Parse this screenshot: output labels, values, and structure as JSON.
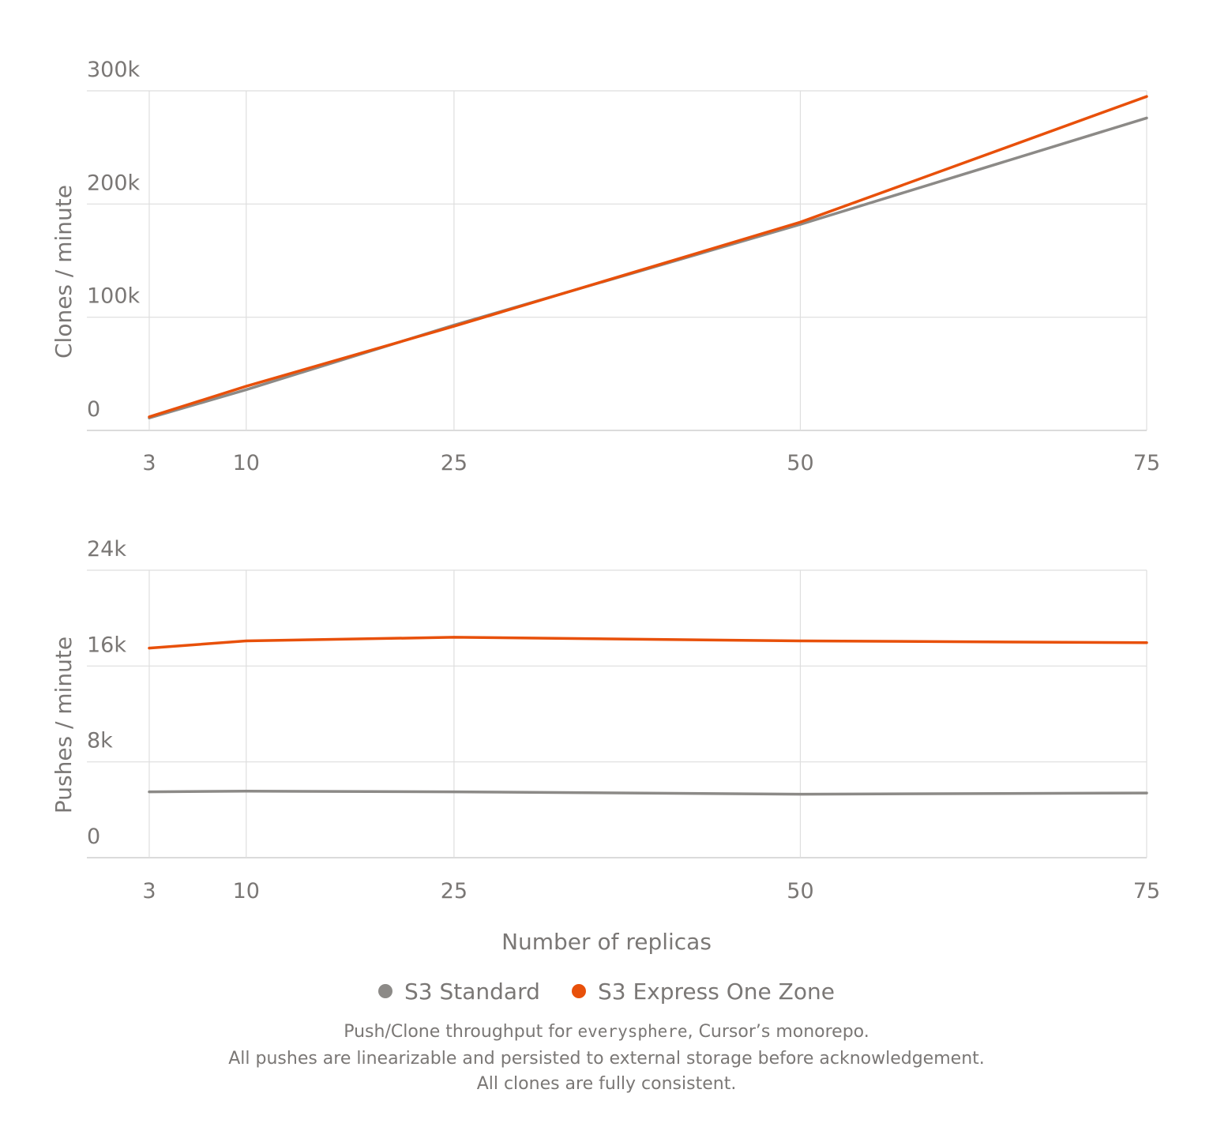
{
  "chart_data": [
    {
      "type": "line",
      "ylabel": "Clones / minute",
      "x": [
        3,
        10,
        25,
        50,
        75
      ],
      "x_ticks": [
        "3",
        "10",
        "25",
        "50",
        "75"
      ],
      "y_ticks": [
        "0",
        "100k",
        "200k",
        "300k"
      ],
      "ylim": [
        0,
        300000
      ],
      "xlim": [
        3,
        75
      ],
      "grid": true,
      "series": [
        {
          "name": "S3 Standard",
          "color": "#8c8a87",
          "values": [
            11000,
            36000,
            93000,
            182000,
            276000
          ]
        },
        {
          "name": "S3 Express One Zone",
          "color": "#e8500a",
          "values": [
            12000,
            39000,
            92000,
            184000,
            295000
          ]
        }
      ]
    },
    {
      "type": "line",
      "ylabel": "Pushes / minute",
      "xlabel": "Number of replicas",
      "x": [
        3,
        10,
        25,
        50,
        75
      ],
      "x_ticks": [
        "3",
        "10",
        "25",
        "50",
        "75"
      ],
      "y_ticks": [
        "0",
        "8k",
        "16k",
        "24k"
      ],
      "ylim": [
        0,
        24000
      ],
      "xlim": [
        3,
        75
      ],
      "grid": true,
      "series": [
        {
          "name": "S3 Standard",
          "color": "#8c8a87",
          "values": [
            5500,
            5550,
            5500,
            5300,
            5400
          ]
        },
        {
          "name": "S3 Express One Zone",
          "color": "#e8500a",
          "values": [
            17500,
            18100,
            18400,
            18100,
            17950
          ]
        }
      ]
    }
  ],
  "legend": [
    {
      "label": "S3 Standard",
      "color": "#8c8a87"
    },
    {
      "label": "S3 Express One Zone",
      "color": "#e8500a"
    }
  ],
  "caption": {
    "line1_before": "Push/Clone throughput for ",
    "line1_code": "everysphere",
    "line1_after": ", Cursor’s monorepo.",
    "line2": "All pushes are linearizable and persisted to external storage before acknowledgement.",
    "line3": "All clones are fully consistent."
  }
}
